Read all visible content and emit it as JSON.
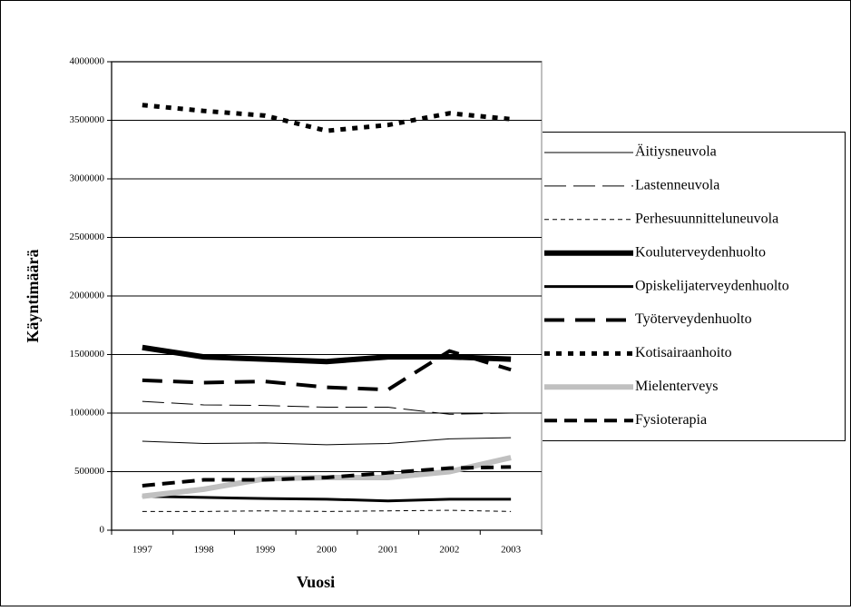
{
  "chart_data": {
    "type": "line",
    "x_label": "Vuosi",
    "y_label": "Käyntimäärä",
    "categories": [
      "1997",
      "1998",
      "1999",
      "2000",
      "2001",
      "2002",
      "2003"
    ],
    "ylim": [
      0,
      4000000
    ],
    "yticks": [
      0,
      500000,
      1000000,
      1500000,
      2000000,
      2500000,
      3000000,
      3500000,
      4000000
    ],
    "grid": true,
    "series": [
      {
        "name": "Äitiysneuvola",
        "color": "#000000",
        "width": 1,
        "dash": "none",
        "values": [
          760000,
          740000,
          745000,
          730000,
          740000,
          780000,
          790000
        ]
      },
      {
        "name": "Lastenneuvola",
        "color": "#000000",
        "width": 1,
        "dash": "24 8",
        "values": [
          1100000,
          1070000,
          1065000,
          1050000,
          1050000,
          990000,
          1000000
        ]
      },
      {
        "name": "Perhesuunnitteluneuvola",
        "color": "#000000",
        "width": 1,
        "dash": "5 4",
        "values": [
          160000,
          160000,
          165000,
          160000,
          165000,
          170000,
          160000
        ]
      },
      {
        "name": "Kouluterveydenhuolto",
        "color": "#000000",
        "width": 6,
        "dash": "none",
        "values": [
          1560000,
          1480000,
          1460000,
          1440000,
          1480000,
          1480000,
          1460000
        ]
      },
      {
        "name": "Opiskelijaterveydenhuolto",
        "color": "#000000",
        "width": 3,
        "dash": "none",
        "values": [
          290000,
          280000,
          270000,
          265000,
          250000,
          265000,
          265000
        ]
      },
      {
        "name": "Työterveydenhuolto",
        "color": "#000000",
        "width": 4,
        "dash": "22 12",
        "values": [
          1280000,
          1260000,
          1270000,
          1220000,
          1200000,
          1530000,
          1370000
        ]
      },
      {
        "name": "Kotisairaanhoito",
        "color": "#000000",
        "width": 5,
        "dash": "6 7",
        "values": [
          3630000,
          3580000,
          3540000,
          3410000,
          3460000,
          3560000,
          3510000
        ]
      },
      {
        "name": "Mielenterveys",
        "color": "#c0c0c0",
        "width": 6,
        "dash": "none",
        "values": [
          290000,
          350000,
          440000,
          450000,
          450000,
          500000,
          620000
        ]
      },
      {
        "name": "Fysioterapia",
        "color": "#000000",
        "width": 4,
        "dash": "14 8",
        "values": [
          380000,
          430000,
          430000,
          450000,
          490000,
          530000,
          540000
        ]
      }
    ]
  }
}
